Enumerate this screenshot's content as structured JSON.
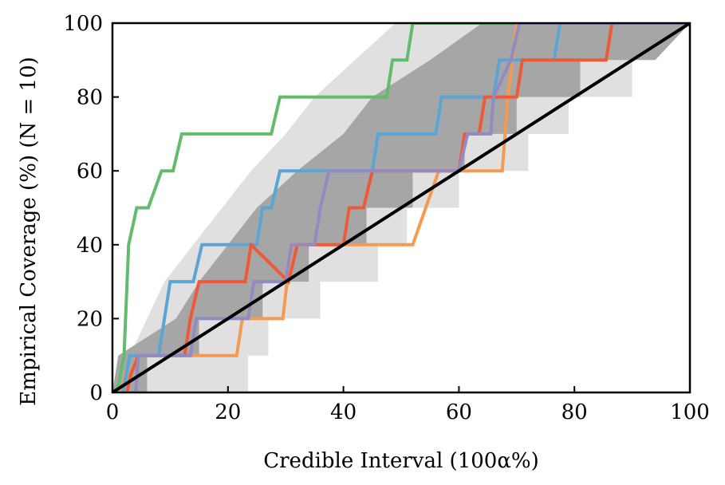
{
  "chart_data": {
    "type": "line",
    "xlabel": "Credible Interval (100α%)",
    "ylabel": "Empirical Coverage (%) (N = 10)",
    "xlim": [
      0,
      100
    ],
    "ylim": [
      0,
      100
    ],
    "xticks": [
      "0",
      "20",
      "40",
      "60",
      "80",
      "100"
    ],
    "yticks": [
      "0",
      "20",
      "40",
      "60",
      "80",
      "100"
    ],
    "grid": false,
    "legend": "none",
    "bands": [
      {
        "level": "outer",
        "color": "#e0e0e0",
        "lower": [
          [
            0,
            0
          ],
          [
            23.5,
            0
          ],
          [
            23.5,
            10
          ],
          [
            27,
            10
          ],
          [
            27,
            20
          ],
          [
            36,
            20
          ],
          [
            36,
            30
          ],
          [
            46,
            30
          ],
          [
            46,
            40
          ],
          [
            51,
            40
          ],
          [
            51,
            50
          ],
          [
            60,
            50
          ],
          [
            60,
            60
          ],
          [
            72,
            60
          ],
          [
            72,
            70
          ],
          [
            79,
            70
          ],
          [
            79,
            80
          ],
          [
            90,
            80
          ],
          [
            90,
            90
          ],
          [
            100,
            100
          ]
        ],
        "upper": [
          [
            0,
            0
          ],
          [
            3,
            10
          ],
          [
            6,
            20
          ],
          [
            9,
            30
          ],
          [
            14,
            40
          ],
          [
            19,
            50
          ],
          [
            24,
            60
          ],
          [
            30,
            70
          ],
          [
            35,
            80
          ],
          [
            42,
            90
          ],
          [
            49,
            100
          ]
        ]
      },
      {
        "level": "inner",
        "color": "#a6a6a6",
        "lower": [
          [
            0,
            0
          ],
          [
            6,
            0
          ],
          [
            6,
            10
          ],
          [
            15,
            10
          ],
          [
            15,
            20
          ],
          [
            26,
            20
          ],
          [
            26,
            30
          ],
          [
            34,
            30
          ],
          [
            34,
            40
          ],
          [
            44,
            40
          ],
          [
            44,
            50
          ],
          [
            52,
            50
          ],
          [
            52,
            60
          ],
          [
            61,
            60
          ],
          [
            61,
            70
          ],
          [
            70,
            70
          ],
          [
            70,
            80
          ],
          [
            81,
            80
          ],
          [
            81,
            90
          ],
          [
            94,
            90
          ],
          [
            100,
            100
          ]
        ],
        "upper": [
          [
            0,
            0
          ],
          [
            1,
            10
          ],
          [
            11,
            20
          ],
          [
            15,
            30
          ],
          [
            20,
            40
          ],
          [
            25,
            50
          ],
          [
            32,
            60
          ],
          [
            40,
            70
          ],
          [
            45,
            80
          ],
          [
            55,
            90
          ],
          [
            64,
            100
          ]
        ]
      }
    ],
    "series": [
      {
        "color": "#62bb6e",
        "x": [
          0.8,
          2.0,
          2.8,
          4.2,
          6.2,
          8.5,
          10.5,
          12.0,
          27.5,
          29.0,
          47.5,
          48.5,
          51.0,
          52.0,
          100
        ],
        "y": [
          0,
          10,
          40,
          50,
          50,
          60,
          60,
          70,
          70,
          80,
          80,
          90,
          90,
          100,
          100
        ]
      },
      {
        "color": "#f59a52",
        "x": [
          1.5,
          3.0,
          3.5,
          5.0,
          21.5,
          22.5,
          29.5,
          31.0,
          52.0,
          56.5,
          67.5,
          68.5,
          70.0,
          100
        ],
        "y": [
          0,
          10,
          10,
          10,
          10,
          20,
          20,
          40,
          40,
          60,
          60,
          80,
          100,
          100
        ]
      },
      {
        "color": "#5aa4d6",
        "x": [
          1.8,
          3.0,
          8.0,
          10.0,
          14.0,
          15.5,
          25.0,
          26.0,
          27.5,
          29.0,
          45.0,
          46.0,
          56.0,
          57.0,
          66.0,
          67.0,
          76.5,
          77.5,
          100
        ],
        "y": [
          0,
          10,
          10,
          30,
          30,
          40,
          40,
          50,
          50,
          60,
          60,
          70,
          70,
          80,
          80,
          90,
          90,
          100,
          100
        ]
      },
      {
        "color": "#ee5a38",
        "x": [
          2.5,
          3.2,
          4.5,
          12.5,
          13.5,
          15.0,
          23.0,
          24.0,
          30.5,
          32.0,
          40.0,
          41.0,
          43.5,
          45.0,
          60.0,
          61.0,
          63.5,
          64.5,
          70.0,
          71.0,
          75.5,
          76.0,
          85.5,
          86.5,
          100
        ],
        "y": [
          0,
          5,
          10,
          10,
          20,
          30,
          30,
          40,
          30,
          40,
          40,
          50,
          50,
          60,
          60,
          70,
          70,
          80,
          80,
          90,
          90,
          90,
          90,
          100,
          100
        ]
      },
      {
        "color": "#918bc2",
        "x": [
          3.5,
          4.0,
          4.5,
          5.0,
          13.5,
          14.5,
          23.5,
          24.5,
          27.5,
          30.0,
          31.0,
          35.0,
          36.0,
          37.5,
          60.0,
          61.5,
          65.5,
          66.0,
          69.0,
          70.5,
          100
        ],
        "y": [
          0,
          0,
          10,
          10,
          10,
          20,
          20,
          30,
          30,
          30,
          40,
          40,
          50,
          60,
          60,
          70,
          70,
          80,
          90,
          100,
          100
        ]
      },
      {
        "color": "#000000",
        "x": [
          0,
          100
        ],
        "y": [
          0,
          100
        ]
      }
    ]
  }
}
